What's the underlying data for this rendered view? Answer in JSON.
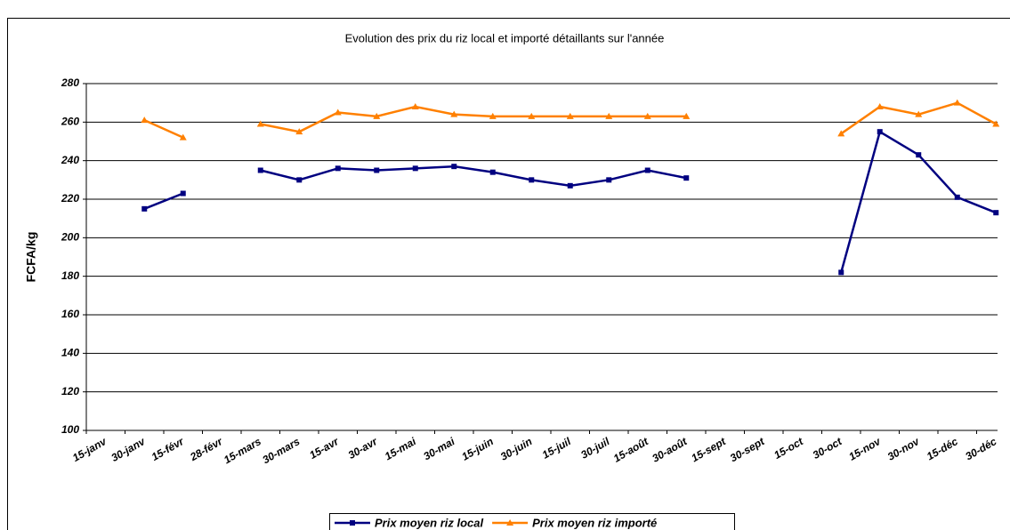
{
  "chart_data": {
    "type": "line",
    "title": "Evolution des prix du riz local et importé détaillants sur l'année",
    "y_label": "FCFA/kg",
    "categories": [
      "15-janv",
      "30-janv",
      "15-févr",
      "28-févr",
      "15-mars",
      "30-mars",
      "15-avr",
      "30-avr",
      "15-mai",
      "30-mai",
      "15-juin",
      "30-juin",
      "15-juil",
      "30-juil",
      "15-août",
      "30-août",
      "15-sept",
      "30-sept",
      "15-oct",
      "30-oct",
      "15-nov",
      "30-nov",
      "15-déc",
      "30-déc"
    ],
    "series": [
      {
        "name": "Prix moyen riz local",
        "color": "#000080",
        "marker": "square",
        "values": [
          null,
          215,
          223,
          null,
          235,
          230,
          236,
          235,
          236,
          237,
          234,
          230,
          227,
          230,
          235,
          231,
          null,
          null,
          null,
          182,
          255,
          243,
          221,
          213
        ]
      },
      {
        "name": "Prix moyen riz importé",
        "color": "#ff8000",
        "marker": "triangle",
        "values": [
          null,
          261,
          252,
          null,
          259,
          255,
          265,
          263,
          268,
          264,
          263,
          263,
          263,
          263,
          263,
          263,
          null,
          null,
          null,
          254,
          268,
          264,
          270,
          259
        ]
      }
    ],
    "ylim": [
      100,
      280
    ],
    "yticks": [
      100,
      120,
      140,
      160,
      180,
      200,
      220,
      240,
      260,
      280
    ],
    "grid": true,
    "legend": "bottom"
  }
}
